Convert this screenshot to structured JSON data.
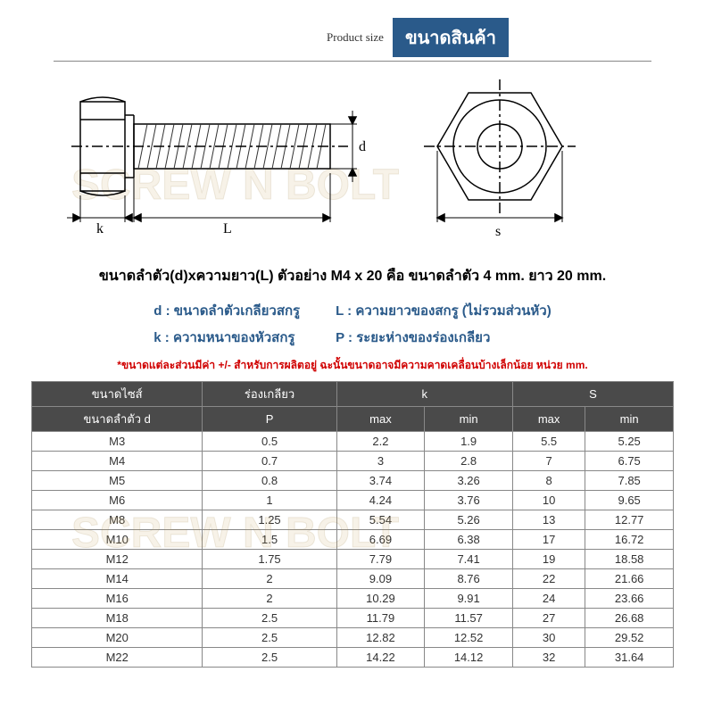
{
  "header": {
    "product_size_en": "Product size",
    "product_size_th": "ขนาดสินค้า"
  },
  "watermark": "SCREW N BOLT",
  "diagram": {
    "labels": {
      "k": "k",
      "L": "L",
      "d": "d",
      "s": "s"
    },
    "stroke": "#000000",
    "hatch": "#333333"
  },
  "description": "ขนาดลำตัว(d)xความยาว(L) ตัวอย่าง M4 x 20 คือ ขนาดลำตัว 4 mm. ยาว 20 mm.",
  "legend": {
    "d": "d : ขนาดลำตัวเกลียวสกรู",
    "L": "L : ความยาวของสกรู (ไม่รวมส่วนหัว)",
    "k": "k : ความหนาของหัวสกรู",
    "P": "P : ระยะห่างของร่องเกลียว"
  },
  "disclaimer": "*ขนาดแต่ละส่วนมีค่า +/- สำหรับการผลิตอยู่ ฉะนั้นขนาดอาจมีความคาดเคลื่อนบ้างเล็กน้อย หน่วย mm.",
  "table": {
    "header_bg": "#4a4a4a",
    "header_fg": "#ffffff",
    "border": "#888888",
    "head_row1": [
      "ขนาดไซส์",
      "ร่องเกลียว",
      "k",
      "S"
    ],
    "head_row2": [
      "ขนาดลำตัว d",
      "P",
      "max",
      "min",
      "max",
      "min"
    ],
    "rows": [
      [
        "M3",
        "0.5",
        "2.2",
        "1.9",
        "5.5",
        "5.25"
      ],
      [
        "M4",
        "0.7",
        "3",
        "2.8",
        "7",
        "6.75"
      ],
      [
        "M5",
        "0.8",
        "3.74",
        "3.26",
        "8",
        "7.85"
      ],
      [
        "M6",
        "1",
        "4.24",
        "3.76",
        "10",
        "9.65"
      ],
      [
        "M8",
        "1.25",
        "5.54",
        "5.26",
        "13",
        "12.77"
      ],
      [
        "M10",
        "1.5",
        "6.69",
        "6.38",
        "17",
        "16.72"
      ],
      [
        "M12",
        "1.75",
        "7.79",
        "7.41",
        "19",
        "18.58"
      ],
      [
        "M14",
        "2",
        "9.09",
        "8.76",
        "22",
        "21.66"
      ],
      [
        "M16",
        "2",
        "10.29",
        "9.91",
        "24",
        "23.66"
      ],
      [
        "M18",
        "2.5",
        "11.79",
        "11.57",
        "27",
        "26.68"
      ],
      [
        "M20",
        "2.5",
        "12.82",
        "12.52",
        "30",
        "29.52"
      ],
      [
        "M22",
        "2.5",
        "14.22",
        "14.12",
        "32",
        "31.64"
      ]
    ]
  }
}
